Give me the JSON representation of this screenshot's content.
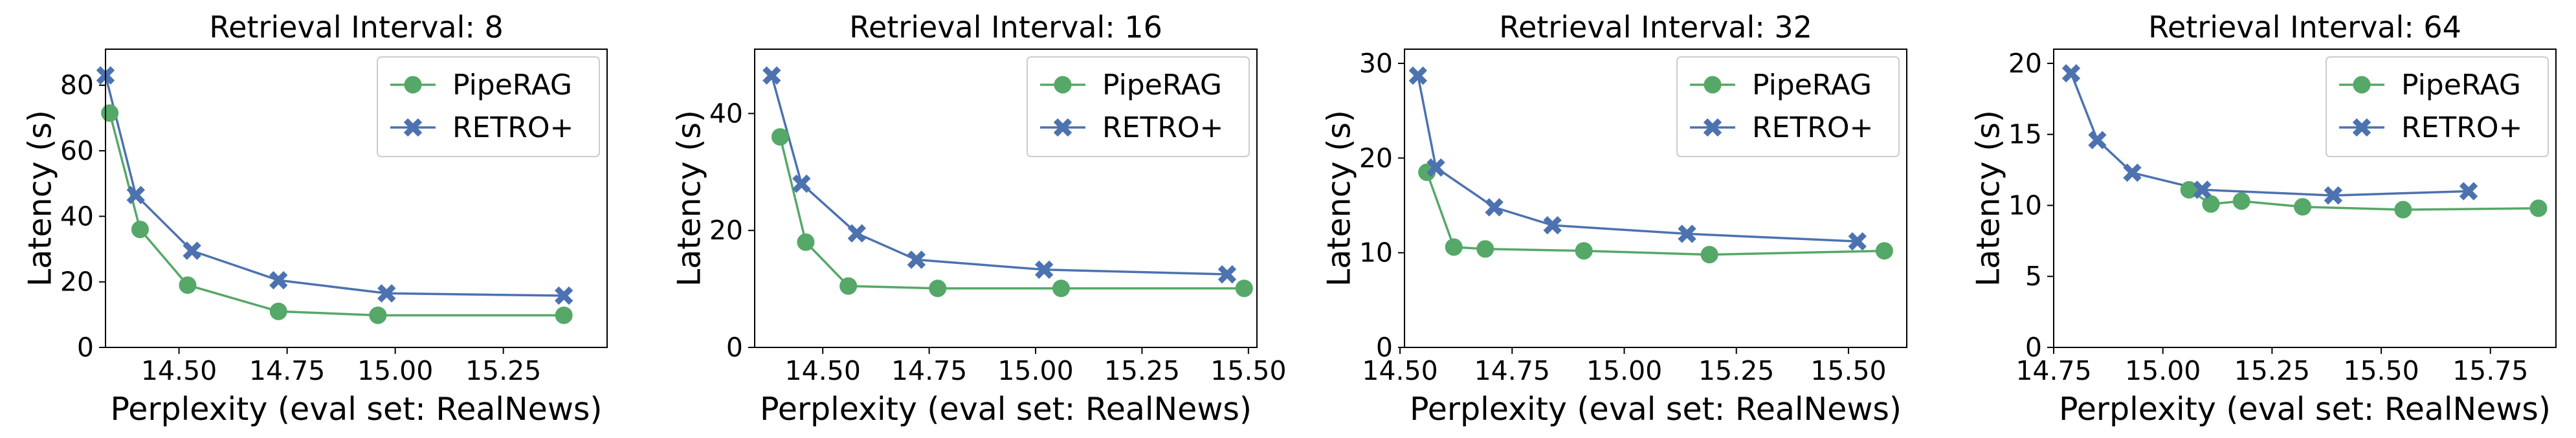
{
  "chart_data": [
    {
      "type": "line",
      "title": "Retrieval Interval: 8",
      "xlabel": "Perplexity (eval set: RealNews)",
      "ylabel": "Latency (s)",
      "xlim": [
        14.33,
        15.49
      ],
      "ylim": [
        0,
        91
      ],
      "xticks": [
        14.5,
        14.75,
        15.0,
        15.25
      ],
      "xtick_labels": [
        "14.50",
        "14.75",
        "15.00",
        "15.25"
      ],
      "yticks": [
        0,
        20,
        40,
        60,
        80
      ],
      "ytick_labels": [
        "0",
        "20",
        "40",
        "60",
        "80"
      ],
      "legend_position": "upper-right",
      "series": [
        {
          "name": "PipeRAG",
          "color": "#55a868",
          "marker": "circle",
          "x": [
            14.34,
            14.41,
            14.52,
            14.73,
            14.96,
            15.39
          ],
          "y": [
            71.5,
            36.0,
            19.0,
            11.0,
            9.8,
            9.8
          ]
        },
        {
          "name": "RETRO+",
          "color": "#4c72b0",
          "marker": "x",
          "x": [
            14.33,
            14.4,
            14.53,
            14.73,
            14.98,
            15.39
          ],
          "y": [
            83.0,
            46.5,
            29.5,
            20.5,
            16.5,
            15.8
          ]
        }
      ]
    },
    {
      "type": "line",
      "title": "Retrieval Interval: 16",
      "xlabel": "Perplexity (eval set: RealNews)",
      "ylabel": "Latency (s)",
      "xlim": [
        14.34,
        15.52
      ],
      "ylim": [
        0,
        51
      ],
      "xticks": [
        14.5,
        14.75,
        15.0,
        15.25,
        15.5
      ],
      "xtick_labels": [
        "14.50",
        "14.75",
        "15.00",
        "15.25",
        "15.50"
      ],
      "yticks": [
        0,
        20,
        40
      ],
      "ytick_labels": [
        "0",
        "20",
        "40"
      ],
      "legend_position": "upper-right",
      "series": [
        {
          "name": "PipeRAG",
          "color": "#55a868",
          "marker": "circle",
          "x": [
            14.4,
            14.46,
            14.56,
            14.77,
            15.06,
            15.49
          ],
          "y": [
            36.0,
            18.0,
            10.5,
            10.1,
            10.1,
            10.1
          ]
        },
        {
          "name": "RETRO+",
          "color": "#4c72b0",
          "marker": "x",
          "x": [
            14.38,
            14.45,
            14.58,
            14.72,
            15.02,
            15.45
          ],
          "y": [
            46.5,
            28.0,
            19.5,
            15.0,
            13.3,
            12.5
          ]
        }
      ]
    },
    {
      "type": "line",
      "title": "Retrieval Interval: 32",
      "xlabel": "Perplexity (eval set: RealNews)",
      "ylabel": "Latency (s)",
      "xlim": [
        14.51,
        15.63
      ],
      "ylim": [
        0,
        31.5
      ],
      "xticks": [
        14.5,
        14.75,
        15.0,
        15.25,
        15.5
      ],
      "xtick_labels": [
        "14.50",
        "14.75",
        "15.00",
        "15.25",
        "15.50"
      ],
      "yticks": [
        0,
        10,
        20,
        30
      ],
      "ytick_labels": [
        "0",
        "10",
        "20",
        "30"
      ],
      "legend_position": "upper-right",
      "series": [
        {
          "name": "PipeRAG",
          "color": "#55a868",
          "marker": "circle",
          "x": [
            14.56,
            14.62,
            14.69,
            14.91,
            15.19,
            15.58
          ],
          "y": [
            18.5,
            10.6,
            10.4,
            10.2,
            9.8,
            10.2
          ]
        },
        {
          "name": "RETRO+",
          "color": "#4c72b0",
          "marker": "x",
          "x": [
            14.54,
            14.58,
            14.71,
            14.84,
            15.14,
            15.52
          ],
          "y": [
            28.7,
            19.0,
            14.8,
            12.9,
            12.0,
            11.2
          ]
        }
      ]
    },
    {
      "type": "line",
      "title": "Retrieval Interval: 64",
      "xlabel": "Perplexity (eval set: RealNews)",
      "ylabel": "Latency (s)",
      "xlim": [
        14.75,
        15.9
      ],
      "ylim": [
        0,
        21
      ],
      "xticks": [
        14.75,
        15.0,
        15.25,
        15.5,
        15.75
      ],
      "xtick_labels": [
        "14.75",
        "15.00",
        "15.25",
        "15.50",
        "15.75"
      ],
      "yticks": [
        0,
        5,
        10,
        15,
        20
      ],
      "ytick_labels": [
        "0",
        "5",
        "10",
        "15",
        "20"
      ],
      "legend_position": "upper-right",
      "series": [
        {
          "name": "PipeRAG",
          "color": "#55a868",
          "marker": "circle",
          "x": [
            15.06,
            15.11,
            15.18,
            15.32,
            15.55,
            15.86
          ],
          "y": [
            11.1,
            10.1,
            10.3,
            9.9,
            9.7,
            9.8
          ]
        },
        {
          "name": "RETRO+",
          "color": "#4c72b0",
          "marker": "x",
          "x": [
            14.79,
            14.85,
            14.93,
            15.09,
            15.39,
            15.7
          ],
          "y": [
            19.3,
            14.6,
            12.3,
            11.1,
            10.7,
            11.0
          ]
        }
      ]
    }
  ]
}
